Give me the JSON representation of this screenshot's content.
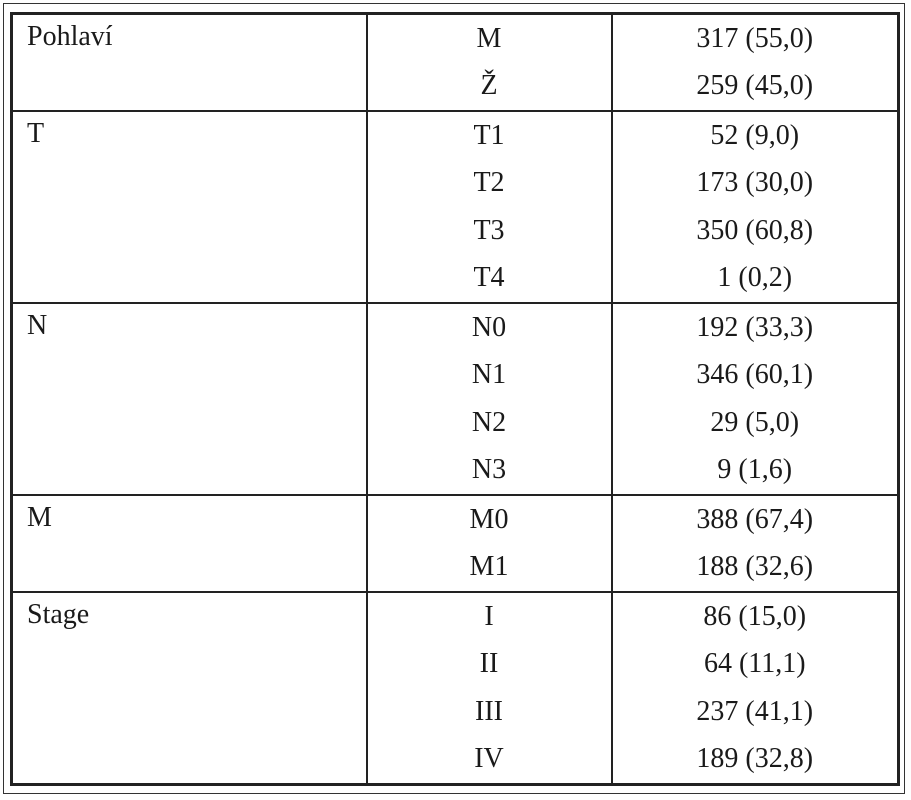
{
  "table": {
    "groups": [
      {
        "label": "Pohlaví",
        "rows": [
          {
            "category": "M",
            "value": "317 (55,0)"
          },
          {
            "category": "Ž",
            "value": "259 (45,0)"
          }
        ]
      },
      {
        "label": "T",
        "rows": [
          {
            "category": "T1",
            "value": "52 (9,0)"
          },
          {
            "category": "T2",
            "value": "173 (30,0)"
          },
          {
            "category": "T3",
            "value": "350 (60,8)"
          },
          {
            "category": "T4",
            "value": "1 (0,2)"
          }
        ]
      },
      {
        "label": "N",
        "rows": [
          {
            "category": "N0",
            "value": "192 (33,3)"
          },
          {
            "category": "N1",
            "value": "346 (60,1)"
          },
          {
            "category": "N2",
            "value": "29 (5,0)"
          },
          {
            "category": "N3",
            "value": "9 (1,6)"
          }
        ]
      },
      {
        "label": "M",
        "rows": [
          {
            "category": "M0",
            "value": "388 (67,4)"
          },
          {
            "category": "M1",
            "value": "188 (32,6)"
          }
        ]
      },
      {
        "label": "Stage",
        "rows": [
          {
            "category": "I",
            "value": "86 (15,0)"
          },
          {
            "category": "II",
            "value": "64 (11,1)"
          },
          {
            "category": "III",
            "value": "237 (41,1)"
          },
          {
            "category": "IV",
            "value": "189 (32,8)"
          }
        ]
      }
    ]
  }
}
